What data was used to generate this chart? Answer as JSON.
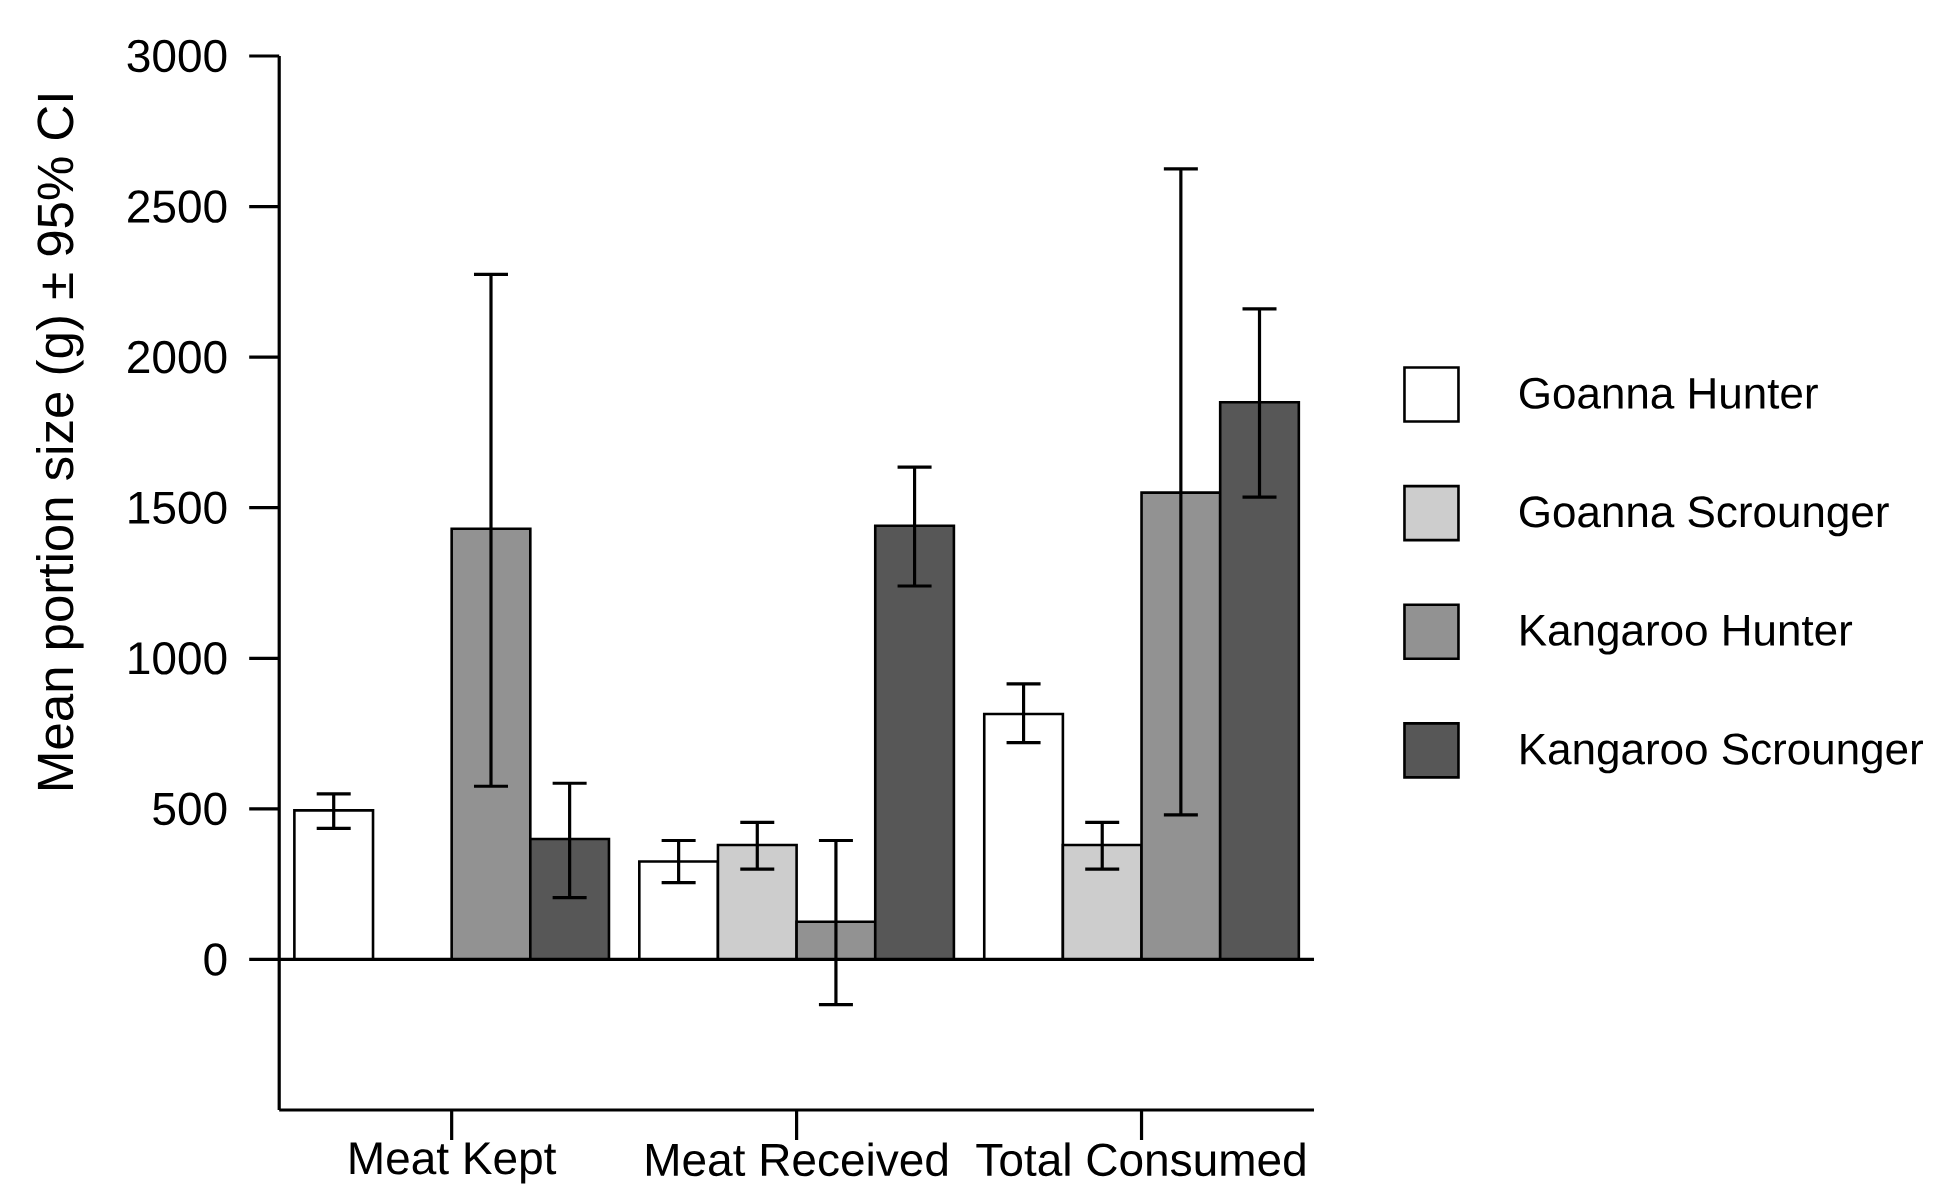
{
  "chart_data": {
    "type": "bar",
    "ylabel": "Mean portion size (g) ± 95% CI",
    "categories": [
      "Meat Kept",
      "Meat Received",
      "Total Consumed"
    ],
    "series": [
      {
        "name": "Goanna Hunter",
        "color": "#ffffff",
        "values": [
          495,
          325,
          815
        ],
        "errors": [
          [
            435,
            550
          ],
          [
            255,
            395
          ],
          [
            720,
            915
          ]
        ]
      },
      {
        "name": "Goanna Scrounger",
        "color": "#cdcdcd",
        "values": [
          null,
          380,
          380
        ],
        "errors": [
          null,
          [
            300,
            455
          ],
          [
            300,
            455
          ]
        ]
      },
      {
        "name": "Kangaroo Hunter",
        "color": "#929292",
        "values": [
          1430,
          125,
          1550
        ],
        "errors": [
          [
            575,
            2275
          ],
          [
            -150,
            395
          ],
          [
            480,
            2625
          ]
        ]
      },
      {
        "name": "Kangaroo Scrounger",
        "color": "#575757",
        "values": [
          400,
          1440,
          1850
        ],
        "errors": [
          [
            205,
            585
          ],
          [
            1240,
            1635
          ],
          [
            1535,
            2160
          ]
        ]
      }
    ],
    "ylim": [
      -500,
      3000
    ],
    "yticks": [
      0,
      500,
      1000,
      1500,
      2000,
      2500,
      3000
    ],
    "ref_lines": [
      {
        "axis": "y",
        "value": 0
      }
    ],
    "legend": "right"
  }
}
